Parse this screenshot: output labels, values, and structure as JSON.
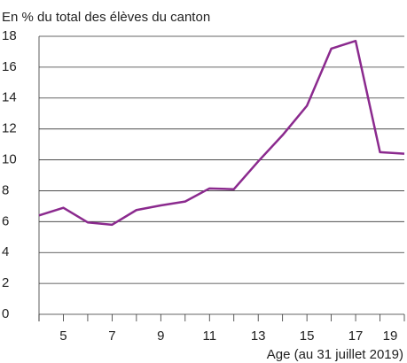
{
  "chart_data": {
    "type": "line",
    "ylabel": "En % du total des élèves du canton",
    "xlabel": "Age (au 31 juillet 2019)",
    "x": [
      4,
      5,
      6,
      7,
      8,
      9,
      10,
      11,
      12,
      13,
      14,
      15,
      16,
      17,
      18,
      19
    ],
    "series": [
      {
        "color": "#8b2a8e",
        "values": [
          6.4,
          6.9,
          5.95,
          5.8,
          6.75,
          7.05,
          7.3,
          8.15,
          8.1,
          9.9,
          11.6,
          13.5,
          17.2,
          17.7,
          10.5,
          10.4
        ]
      }
    ],
    "xlim": [
      4,
      19
    ],
    "xticks": [
      5,
      7,
      9,
      11,
      13,
      15,
      17,
      19
    ],
    "xminorticks": [
      4,
      6,
      8,
      10,
      12,
      14,
      16,
      18
    ],
    "ylim": [
      0,
      18
    ],
    "yticks": [
      0,
      2,
      4,
      6,
      8,
      10,
      12,
      14,
      16,
      18
    ],
    "grid": true
  }
}
